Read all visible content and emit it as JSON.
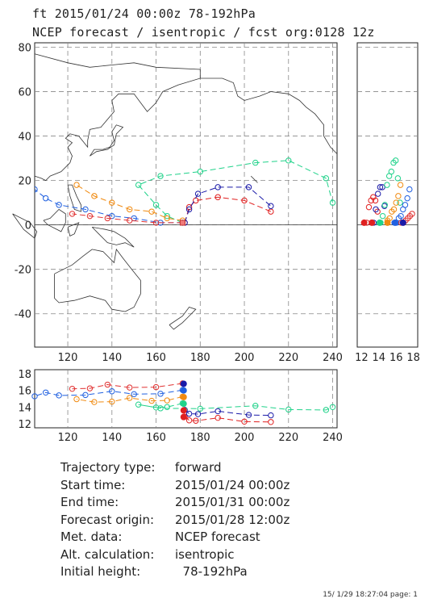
{
  "header": {
    "line1": "ft 2015/01/24 00:00z  78-192hPa",
    "line2": "NCEP forecast / isentropic / fcst org:0128 12z"
  },
  "chart_data": [
    {
      "panel": "map",
      "type": "line",
      "xlim": [
        105,
        242
      ],
      "ylim": [
        -55,
        82
      ],
      "x_ticks": [
        120,
        140,
        160,
        180,
        200,
        220,
        240
      ],
      "y_ticks": [
        -40,
        -20,
        0,
        20,
        40,
        60,
        80
      ],
      "grid": "dashed",
      "series": [
        {
          "color": "#e02020",
          "dash": "dash",
          "points": [
            [
              173,
              1
            ],
            [
              175,
              8
            ],
            [
              178,
              11
            ],
            [
              188,
              12.5
            ],
            [
              200,
              11
            ],
            [
              212,
              6
            ]
          ]
        },
        {
          "color": "#1a1aa8",
          "dash": "dash",
          "points": [
            [
              173,
              1
            ],
            [
              175,
              7
            ],
            [
              179,
              14
            ],
            [
              188,
              17
            ],
            [
              202,
              17
            ],
            [
              212,
              8.5
            ]
          ]
        },
        {
          "color": "#20d28a",
          "dash": "dash",
          "points": [
            [
              172,
              1
            ],
            [
              165,
              4
            ],
            [
              160,
              9
            ],
            [
              152,
              18
            ],
            [
              162,
              22
            ],
            [
              180,
              24
            ],
            [
              205,
              28
            ],
            [
              220,
              29
            ],
            [
              237,
              21
            ],
            [
              240,
              10
            ]
          ]
        },
        {
          "color": "#f08a10",
          "dash": "dash",
          "points": [
            [
              172,
              2
            ],
            [
              165,
              3
            ],
            [
              158,
              6
            ],
            [
              148,
              7
            ],
            [
              140,
              10
            ],
            [
              132,
              13
            ],
            [
              124,
              18
            ]
          ]
        },
        {
          "color": "#2060e0",
          "dash": "dash",
          "points": [
            [
              172,
              1
            ],
            [
              162,
              1
            ],
            [
              150,
              3
            ],
            [
              140,
              4
            ],
            [
              128,
              7
            ],
            [
              116,
              9
            ],
            [
              110,
              12
            ],
            [
              105,
              16
            ]
          ]
        },
        {
          "color": "#e03030",
          "dash": "dash",
          "points": [
            [
              172,
              1
            ],
            [
              160,
              1
            ],
            [
              148,
              2
            ],
            [
              138,
              3
            ],
            [
              130,
              4
            ],
            [
              122,
              5
            ]
          ]
        }
      ]
    },
    {
      "panel": "right-strip",
      "type": "scatter",
      "xlim": [
        11.5,
        18.5
      ],
      "x_ticks": [
        12,
        14,
        16,
        18
      ],
      "ylim": [
        -55,
        82
      ]
    },
    {
      "panel": "bottom-strip",
      "type": "line",
      "xlim": [
        105,
        242
      ],
      "ylim": [
        11.5,
        18.5
      ],
      "x_ticks": [
        120,
        140,
        160,
        180,
        200,
        220,
        240
      ],
      "y_ticks": [
        12,
        14,
        16,
        18
      ]
    }
  ],
  "info": [
    {
      "label": "Trajectory type:",
      "value": "forward"
    },
    {
      "label": "Start time:",
      "value": "2015/01/24 00:00z"
    },
    {
      "label": "End time:",
      "value": "2015/01/31 00:00z"
    },
    {
      "label": "Forecast origin:",
      "value": "2015/01/28 12:00z"
    },
    {
      "label": "Met. data:",
      "value": "NCEP forecast"
    },
    {
      "label": "Alt. calculation:",
      "value": "isentropic"
    },
    {
      "label": "Initial height:",
      "value": "  78-192hPa"
    }
  ],
  "footer": "15/ 1/29 18:27:04 page: 1"
}
